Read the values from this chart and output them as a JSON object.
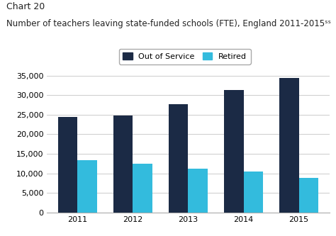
{
  "title_line1": "Chart 20",
  "title_line2": "Number of teachers leaving state-funded schools (FTE), England 2011-2015ˢˢ",
  "years": [
    "2011",
    "2012",
    "2013",
    "2014",
    "2015"
  ],
  "out_of_service": [
    24500,
    24700,
    27700,
    31300,
    34300
  ],
  "retired": [
    13300,
    12400,
    11200,
    10500,
    8800
  ],
  "color_out_of_service": "#1b2a45",
  "color_retired": "#33bbdd",
  "ylim": [
    0,
    35000
  ],
  "yticks": [
    0,
    5000,
    10000,
    15000,
    20000,
    25000,
    30000,
    35000
  ],
  "ytick_labels": [
    "0",
    "5,000",
    "10,000",
    "15,000",
    "20,000",
    "25,000",
    "30,000",
    "35,000"
  ],
  "legend_labels": [
    "Out of Service",
    "Retired"
  ],
  "background_color": "#ffffff",
  "plot_bg_color": "#ffffff",
  "grid_color": "#cccccc",
  "bar_width": 0.35,
  "title_fontsize": 9,
  "axis_fontsize": 8,
  "legend_fontsize": 8
}
